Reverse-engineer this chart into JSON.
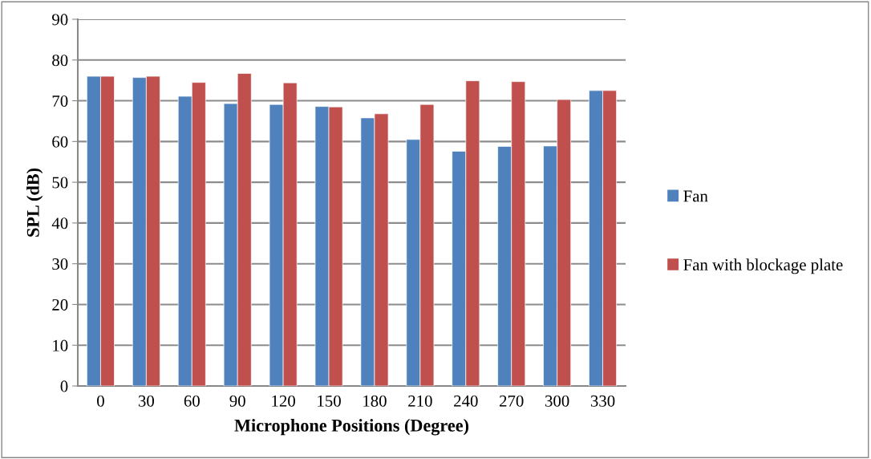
{
  "chart_data": {
    "type": "bar",
    "xlabel": "Microphone Positions (Degree)",
    "ylabel": "SPL (dB)",
    "categories": [
      "0",
      "30",
      "60",
      "90",
      "120",
      "150",
      "180",
      "210",
      "240",
      "270",
      "300",
      "330"
    ],
    "series": [
      {
        "name": "Fan",
        "color": "#4f81bd",
        "values": [
          76.0,
          75.7,
          71.1,
          69.3,
          69.1,
          68.6,
          65.8,
          60.5,
          57.6,
          58.8,
          58.9,
          72.5
        ]
      },
      {
        "name": "Fan with blockage plate",
        "color": "#c0504d",
        "values": [
          76.0,
          76.0,
          74.5,
          76.7,
          74.4,
          68.5,
          66.8,
          69.1,
          74.9,
          74.7,
          70.3,
          72.5
        ]
      }
    ],
    "ylim": [
      0,
      90
    ],
    "yticks": [
      0,
      10,
      20,
      30,
      40,
      50,
      60,
      70,
      80,
      90
    ],
    "grid": "y",
    "legend": "right"
  }
}
